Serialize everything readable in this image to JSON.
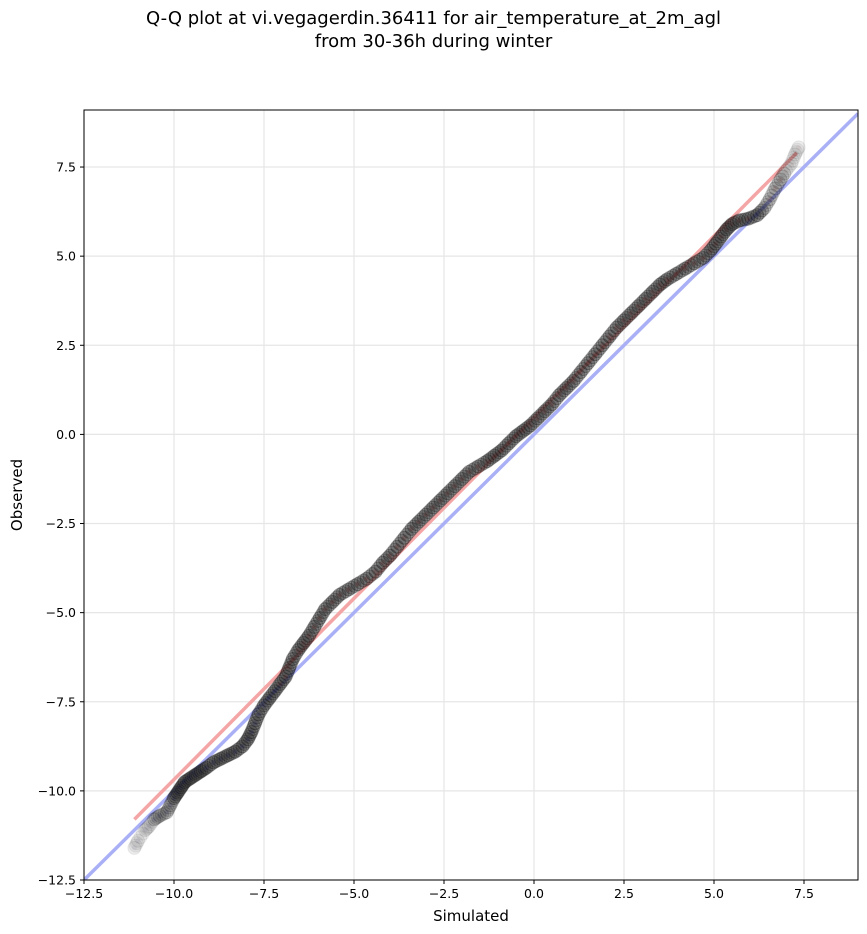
{
  "chart_data": {
    "type": "scatter",
    "title": "Q-Q plot at vi.vegagerdin.36411 for air_temperature_at_2m_agl",
    "subtitle": "from 30-36h during winter",
    "xlabel": "Simulated",
    "ylabel": "Observed",
    "xlim": [
      -12.5,
      9.0
    ],
    "ylim": [
      -12.5,
      9.1
    ],
    "xticks": [
      -12.5,
      -10.0,
      -7.5,
      -5.0,
      -2.5,
      0.0,
      2.5,
      5.0,
      7.5
    ],
    "yticks": [
      -12.5,
      -10.0,
      -7.5,
      -5.0,
      -2.5,
      0.0,
      2.5,
      5.0,
      7.5
    ],
    "xtick_labels": [
      "−12.5",
      "−10.0",
      "−7.5",
      "−5.0",
      "−2.5",
      "0.0",
      "2.5",
      "5.0",
      "7.5"
    ],
    "ytick_labels": [
      "−12.5",
      "−10.0",
      "−7.5",
      "−5.0",
      "−2.5",
      "0.0",
      "2.5",
      "5.0",
      "7.5"
    ],
    "grid": true,
    "points_quantiles": [
      [
        -11.1,
        -11.6
      ],
      [
        -11.0,
        -11.4
      ],
      [
        -10.8,
        -11.1
      ],
      [
        -10.7,
        -11.0
      ],
      [
        -10.55,
        -10.8
      ],
      [
        -10.4,
        -10.7
      ],
      [
        -10.2,
        -10.6
      ],
      [
        -10.1,
        -10.4
      ],
      [
        -10.0,
        -10.2
      ],
      [
        -9.9,
        -10.05
      ],
      [
        -9.8,
        -9.9
      ],
      [
        -9.7,
        -9.75
      ],
      [
        -9.55,
        -9.65
      ],
      [
        -9.4,
        -9.55
      ],
      [
        -9.25,
        -9.45
      ],
      [
        -9.1,
        -9.35
      ],
      [
        -8.9,
        -9.2
      ],
      [
        -8.7,
        -9.1
      ],
      [
        -8.5,
        -9.0
      ],
      [
        -8.3,
        -8.9
      ],
      [
        -8.1,
        -8.75
      ],
      [
        -7.95,
        -8.55
      ],
      [
        -7.85,
        -8.35
      ],
      [
        -7.75,
        -8.1
      ],
      [
        -7.65,
        -7.85
      ],
      [
        -7.5,
        -7.6
      ],
      [
        -7.35,
        -7.4
      ],
      [
        -7.2,
        -7.2
      ],
      [
        -7.05,
        -7.0
      ],
      [
        -6.9,
        -6.8
      ],
      [
        -6.8,
        -6.55
      ],
      [
        -6.7,
        -6.3
      ],
      [
        -6.55,
        -6.05
      ],
      [
        -6.4,
        -5.85
      ],
      [
        -6.25,
        -5.65
      ],
      [
        -6.1,
        -5.4
      ],
      [
        -5.95,
        -5.15
      ],
      [
        -5.8,
        -4.9
      ],
      [
        -5.6,
        -4.7
      ],
      [
        -5.4,
        -4.5
      ],
      [
        -5.15,
        -4.35
      ],
      [
        -4.9,
        -4.2
      ],
      [
        -4.65,
        -4.05
      ],
      [
        -4.4,
        -3.85
      ],
      [
        -4.2,
        -3.6
      ],
      [
        -4.0,
        -3.4
      ],
      [
        -3.8,
        -3.15
      ],
      [
        -3.6,
        -2.9
      ],
      [
        -3.4,
        -2.65
      ],
      [
        -3.2,
        -2.45
      ],
      [
        -3.0,
        -2.25
      ],
      [
        -2.8,
        -2.05
      ],
      [
        -2.6,
        -1.85
      ],
      [
        -2.4,
        -1.65
      ],
      [
        -2.2,
        -1.45
      ],
      [
        -2.0,
        -1.25
      ],
      [
        -1.8,
        -1.05
      ],
      [
        -1.55,
        -0.9
      ],
      [
        -1.3,
        -0.75
      ],
      [
        -1.1,
        -0.6
      ],
      [
        -0.9,
        -0.45
      ],
      [
        -0.7,
        -0.25
      ],
      [
        -0.5,
        -0.05
      ],
      [
        -0.3,
        0.1
      ],
      [
        -0.1,
        0.25
      ],
      [
        0.1,
        0.45
      ],
      [
        0.3,
        0.65
      ],
      [
        0.5,
        0.85
      ],
      [
        0.7,
        1.1
      ],
      [
        0.9,
        1.3
      ],
      [
        1.1,
        1.5
      ],
      [
        1.3,
        1.75
      ],
      [
        1.5,
        2.0
      ],
      [
        1.7,
        2.25
      ],
      [
        1.9,
        2.5
      ],
      [
        2.1,
        2.75
      ],
      [
        2.3,
        3.0
      ],
      [
        2.5,
        3.2
      ],
      [
        2.7,
        3.4
      ],
      [
        2.9,
        3.6
      ],
      [
        3.1,
        3.8
      ],
      [
        3.3,
        4.0
      ],
      [
        3.5,
        4.2
      ],
      [
        3.7,
        4.35
      ],
      [
        3.95,
        4.5
      ],
      [
        4.2,
        4.65
      ],
      [
        4.45,
        4.8
      ],
      [
        4.7,
        4.95
      ],
      [
        4.9,
        5.15
      ],
      [
        5.05,
        5.35
      ],
      [
        5.2,
        5.55
      ],
      [
        5.35,
        5.75
      ],
      [
        5.5,
        5.9
      ],
      [
        5.7,
        6.0
      ],
      [
        5.95,
        6.05
      ],
      [
        6.2,
        6.15
      ],
      [
        6.4,
        6.35
      ],
      [
        6.55,
        6.6
      ],
      [
        6.7,
        6.9
      ],
      [
        6.85,
        7.15
      ],
      [
        7.0,
        7.4
      ],
      [
        7.15,
        7.6
      ],
      [
        7.25,
        7.85
      ],
      [
        7.35,
        8.05
      ]
    ],
    "identity_line": {
      "x": [
        -12.5,
        9.0
      ],
      "y": [
        -12.5,
        9.0
      ],
      "color": "#aab0f5"
    },
    "fit_line": {
      "x": [
        -11.1,
        7.3
      ],
      "y": [
        -10.8,
        7.9
      ],
      "color": "#f4a6a6"
    },
    "colors": {
      "points": "#222222",
      "points_edge": "#000000",
      "neg_highlight": "#1c1c8a",
      "pos_highlight": "#8b1a1a"
    }
  }
}
